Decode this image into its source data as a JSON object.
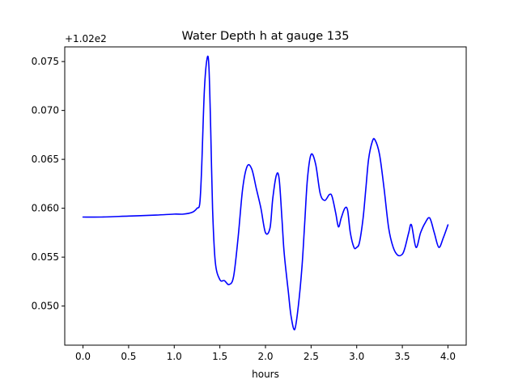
{
  "chart_data": {
    "type": "line",
    "title": "Water Depth h at gauge 135",
    "xlabel": "hours",
    "ylabel": "",
    "y_offset_text": "+1.02e2",
    "y_offset_value": 102,
    "xlim": [
      -0.2,
      4.2
    ],
    "ylim": [
      0.046,
      0.0765
    ],
    "x_ticks": [
      0.0,
      0.5,
      1.0,
      1.5,
      2.0,
      2.5,
      3.0,
      3.5,
      4.0
    ],
    "x_tick_labels": [
      "0.0",
      "0.5",
      "1.0",
      "1.5",
      "2.0",
      "2.5",
      "3.0",
      "3.5",
      "4.0"
    ],
    "y_ticks": [
      0.05,
      0.055,
      0.06,
      0.065,
      0.07,
      0.075
    ],
    "y_tick_labels": [
      "0.050",
      "0.055",
      "0.060",
      "0.065",
      "0.070",
      "0.075"
    ],
    "grid": false,
    "series": [
      {
        "color": "#0000ff",
        "x": [
          0.0,
          0.2,
          0.5,
          0.8,
          1.0,
          1.1,
          1.2,
          1.25,
          1.28,
          1.3,
          1.33,
          1.36,
          1.38,
          1.4,
          1.42,
          1.45,
          1.5,
          1.55,
          1.6,
          1.65,
          1.7,
          1.75,
          1.8,
          1.85,
          1.9,
          1.95,
          2.0,
          2.05,
          2.08,
          2.12,
          2.15,
          2.18,
          2.2,
          2.22,
          2.25,
          2.28,
          2.32,
          2.36,
          2.4,
          2.43,
          2.46,
          2.5,
          2.55,
          2.6,
          2.65,
          2.7,
          2.73,
          2.77,
          2.8,
          2.83,
          2.87,
          2.9,
          2.93,
          2.97,
          3.0,
          3.03,
          3.07,
          3.1,
          3.13,
          3.17,
          3.2,
          3.25,
          3.3,
          3.35,
          3.4,
          3.45,
          3.5,
          3.53,
          3.57,
          3.6,
          3.65,
          3.7,
          3.75,
          3.8,
          3.85,
          3.9,
          3.95,
          4.0
        ],
        "y": [
          0.0591,
          0.0591,
          0.0592,
          0.0593,
          0.0594,
          0.0594,
          0.0596,
          0.06,
          0.0605,
          0.064,
          0.072,
          0.0753,
          0.0745,
          0.068,
          0.06,
          0.0545,
          0.0527,
          0.0526,
          0.0522,
          0.053,
          0.057,
          0.062,
          0.0643,
          0.064,
          0.062,
          0.06,
          0.0575,
          0.058,
          0.061,
          0.0634,
          0.063,
          0.059,
          0.056,
          0.054,
          0.0515,
          0.049,
          0.0476,
          0.05,
          0.054,
          0.0585,
          0.063,
          0.0655,
          0.0645,
          0.0615,
          0.0608,
          0.0614,
          0.0612,
          0.0595,
          0.0581,
          0.059,
          0.06,
          0.0598,
          0.0575,
          0.056,
          0.056,
          0.0565,
          0.059,
          0.062,
          0.065,
          0.0668,
          0.067,
          0.0655,
          0.062,
          0.058,
          0.056,
          0.0552,
          0.0553,
          0.056,
          0.0575,
          0.0583,
          0.056,
          0.0575,
          0.0585,
          0.059,
          0.0575,
          0.056,
          0.057,
          0.0583
        ]
      }
    ]
  }
}
